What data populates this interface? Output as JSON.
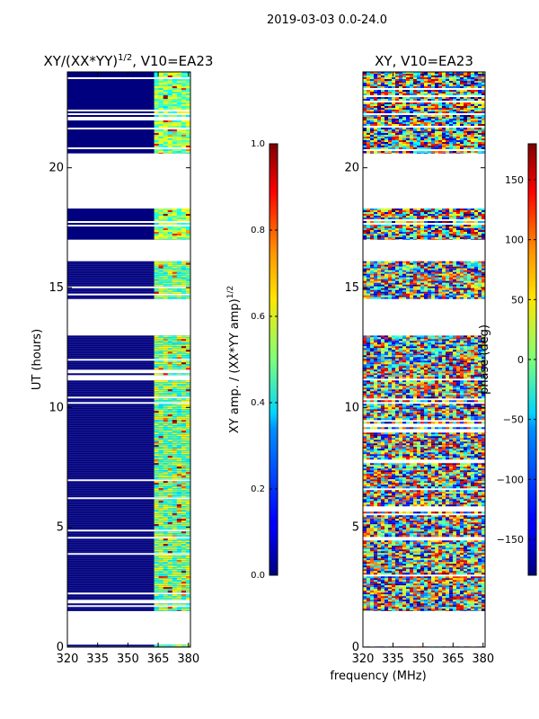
{
  "suptitle": "2019-03-03 0.0-24.0",
  "xlabel_shared": "frequency (MHz)",
  "colors": {
    "low": "#00007f",
    "high": "#7f0000",
    "frame": "#000000"
  },
  "chart_data": [
    {
      "type": "heatmap",
      "title": "XY/(XX*YY)^(1/2), V10=EA23",
      "title_main": "XY/(XX*YY)",
      "title_exp": "1/2",
      "title_rest": ", V10=EA23",
      "ylabel": "UT (hours)",
      "xlim": [
        320,
        381
      ],
      "ylim": [
        0,
        24
      ],
      "xticks": [
        320,
        335,
        350,
        365,
        380
      ],
      "yticks": [
        0,
        5,
        10,
        15,
        20
      ],
      "value_range": [
        0,
        1
      ],
      "data_bands_hours": [
        [
          0.0,
          0.1
        ],
        [
          1.5,
          13.0
        ],
        [
          14.5,
          16.1
        ],
        [
          17.0,
          18.3
        ],
        [
          20.6,
          24.0
        ]
      ],
      "bright_freq_range": [
        363,
        381
      ],
      "colorbar": {
        "label": "XY amp. / (XX*YY amp)",
        "label_exp": "1/2",
        "range": [
          0,
          1
        ],
        "ticks": [
          "0.0",
          "0.2",
          "0.4",
          "0.6",
          "0.8",
          "1.0"
        ]
      }
    },
    {
      "type": "heatmap",
      "title": "XY, V10=EA23",
      "xlim": [
        320,
        381
      ],
      "ylim": [
        0,
        24
      ],
      "xticks": [
        320,
        335,
        350,
        365,
        380
      ],
      "yticks": [
        0,
        5,
        10,
        15,
        20
      ],
      "value_range": [
        -180,
        180
      ],
      "data_bands_hours": [
        [
          0.0,
          0.1
        ],
        [
          1.5,
          13.0
        ],
        [
          14.5,
          16.1
        ],
        [
          17.0,
          18.3
        ],
        [
          20.6,
          24.0
        ]
      ],
      "colorbar": {
        "label": "phase (deg)",
        "range": [
          -180,
          180
        ],
        "ticks": [
          "-150",
          "-100",
          "-50",
          "0",
          "50",
          "100",
          "150"
        ]
      }
    }
  ]
}
